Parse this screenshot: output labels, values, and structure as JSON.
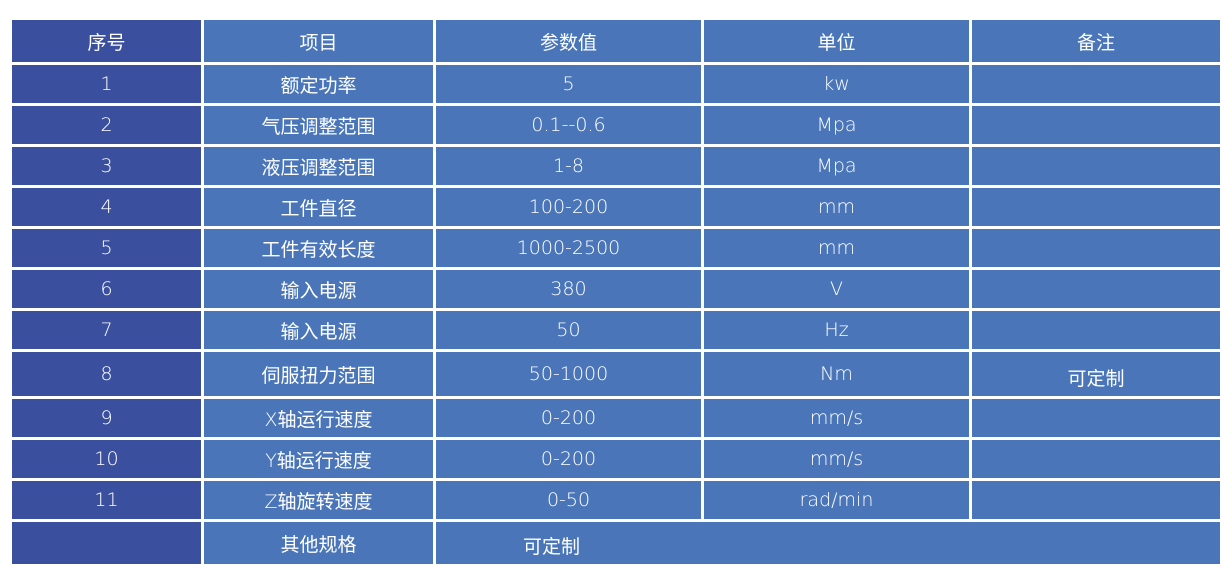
{
  "headers": [
    "序号",
    "项目",
    "参数值",
    "单位",
    "备注"
  ],
  "rows": [
    [
      "1",
      "额定功率",
      "5",
      "kw",
      ""
    ],
    [
      "2",
      "气压调整范围",
      "0.1--0.6",
      "Mpa",
      ""
    ],
    [
      "3",
      "液压调整范围",
      "1-8",
      "Mpa",
      ""
    ],
    [
      "4",
      "工件直径",
      "100-200",
      "mm",
      ""
    ],
    [
      "5",
      "工件有效长度",
      "1000-2500",
      "mm",
      ""
    ],
    [
      "6",
      "输入电源",
      "380",
      "V",
      ""
    ],
    [
      "7",
      "输入电源",
      "50",
      "Hz",
      ""
    ],
    [
      "8",
      "伺服扭力范围",
      "50-1000",
      "Nm",
      "可定制"
    ],
    [
      "9",
      "X轴运行速度",
      "0-200",
      "mm/s",
      ""
    ],
    [
      "10",
      "Y轴运行速度",
      "0-200",
      "mm/s",
      ""
    ],
    [
      "11",
      "Z轴旋转速度",
      "0-50",
      "rad/min",
      ""
    ]
  ],
  "footer": {
    "no": "",
    "item": "其他规格",
    "value": "可定制"
  },
  "colors": {
    "index_column": "#3a4f9e",
    "cells": "#4a76b9",
    "borders": "#ffffff"
  }
}
